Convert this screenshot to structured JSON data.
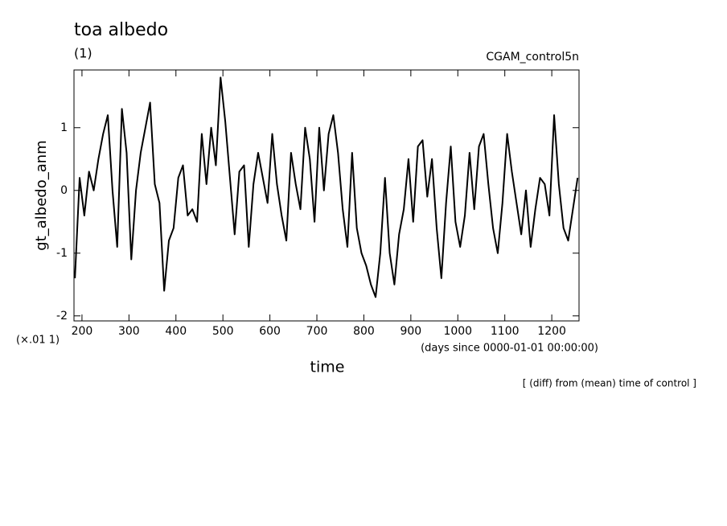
{
  "chart_data": {
    "type": "line",
    "title": "toa albedo",
    "subtitle": "(1)",
    "dataset_label": "CGAM_control5n",
    "y_label": "gt_albedo_anm",
    "y_scale_note": "(×.01 1)",
    "x_units": "(days since 0000-01-01 00:00:00)",
    "x_label": "time",
    "note": "[ (diff) from (mean) time of control ]",
    "xlim": [
      183,
      1258
    ],
    "ylim": [
      -2.08,
      1.92
    ],
    "xticks": [
      200,
      300,
      400,
      500,
      600,
      700,
      800,
      900,
      1000,
      1100,
      1200
    ],
    "yticks": [
      -2,
      -1,
      0,
      1
    ],
    "x": [
      185,
      195,
      205,
      215,
      225,
      235,
      245,
      255,
      265,
      275,
      285,
      295,
      305,
      315,
      325,
      335,
      345,
      355,
      365,
      375,
      385,
      395,
      405,
      415,
      425,
      435,
      445,
      455,
      465,
      475,
      485,
      495,
      505,
      515,
      525,
      535,
      545,
      555,
      565,
      575,
      585,
      595,
      605,
      615,
      625,
      635,
      645,
      655,
      665,
      675,
      685,
      695,
      705,
      715,
      725,
      735,
      745,
      755,
      765,
      775,
      785,
      795,
      805,
      815,
      825,
      835,
      845,
      855,
      865,
      875,
      885,
      895,
      905,
      915,
      925,
      935,
      945,
      955,
      965,
      975,
      985,
      995,
      1005,
      1015,
      1025,
      1035,
      1045,
      1055,
      1065,
      1075,
      1085,
      1095,
      1105,
      1115,
      1125,
      1135,
      1145,
      1155,
      1165,
      1175,
      1185,
      1195,
      1205,
      1215,
      1225,
      1235,
      1245,
      1255
    ],
    "series": [
      {
        "color": "#000000",
        "values": [
          -1.4,
          0.2,
          -0.4,
          0.3,
          0.0,
          0.5,
          0.9,
          1.2,
          0.0,
          -0.9,
          1.3,
          0.6,
          -1.1,
          0.0,
          0.6,
          1.0,
          1.4,
          0.1,
          -0.2,
          -1.6,
          -0.8,
          -0.6,
          0.2,
          0.4,
          -0.4,
          -0.3,
          -0.5,
          0.9,
          0.1,
          1.0,
          0.4,
          1.8,
          1.1,
          0.2,
          -0.7,
          0.3,
          0.4,
          -0.9,
          0.1,
          0.6,
          0.2,
          -0.2,
          0.9,
          0.1,
          -0.4,
          -0.8,
          0.6,
          0.1,
          -0.3,
          1.0,
          0.5,
          -0.5,
          1.0,
          0.0,
          0.9,
          1.2,
          0.6,
          -0.3,
          -0.9,
          0.6,
          -0.6,
          -1.0,
          -1.2,
          -1.5,
          -1.7,
          -1.0,
          0.2,
          -1.0,
          -1.5,
          -0.7,
          -0.3,
          0.5,
          -0.5,
          0.7,
          0.8,
          -0.1,
          0.5,
          -0.6,
          -1.4,
          -0.2,
          0.7,
          -0.5,
          -0.9,
          -0.4,
          0.6,
          -0.3,
          0.7,
          0.9,
          0.1,
          -0.6,
          -1.0,
          -0.2,
          0.9,
          0.3,
          -0.2,
          -0.7,
          0.0,
          -0.9,
          -0.3,
          0.2,
          0.1,
          -0.4,
          1.2,
          0.1,
          -0.6,
          -0.8,
          -0.3,
          0.2
        ]
      }
    ]
  }
}
